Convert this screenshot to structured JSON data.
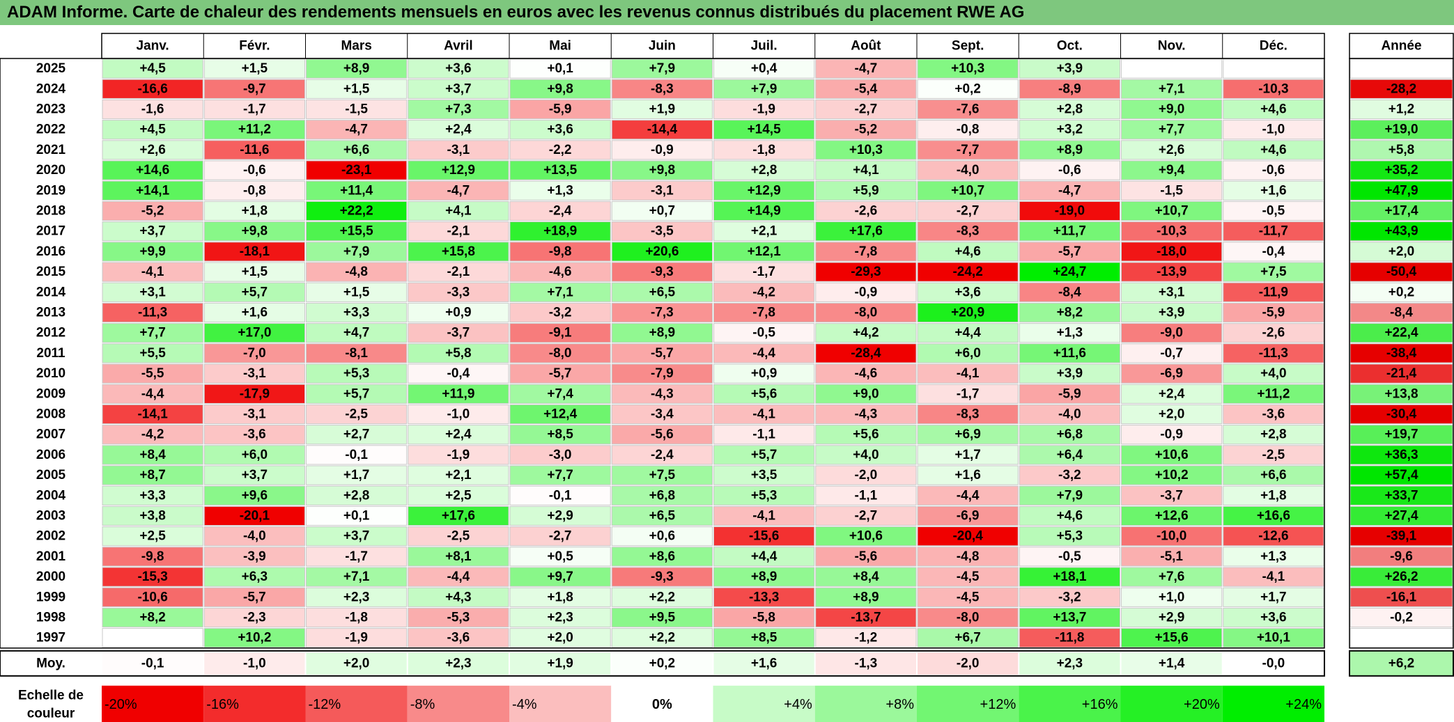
{
  "title": "ADAM Informe. Carte de chaleur des rendements mensuels en euros avec les revenus connus distribués du placement RWE AG",
  "chart_data": {
    "type": "heatmap",
    "months": [
      "Janv.",
      "Févr.",
      "Mars",
      "Avril",
      "Mai",
      "Juin",
      "Juil.",
      "Août",
      "Sept.",
      "Oct.",
      "Nov.",
      "Déc."
    ],
    "year_header": "Année",
    "rows": [
      {
        "year": "2025",
        "values": [
          4.5,
          1.5,
          8.9,
          3.6,
          0.1,
          7.9,
          0.4,
          -4.7,
          10.3,
          3.9,
          null,
          null
        ],
        "annual": null
      },
      {
        "year": "2024",
        "values": [
          -16.6,
          -9.7,
          1.5,
          3.7,
          9.8,
          -8.3,
          7.9,
          -5.4,
          0.2,
          -8.9,
          7.1,
          -10.3
        ],
        "annual": -28.2
      },
      {
        "year": "2023",
        "values": [
          -1.6,
          -1.7,
          -1.5,
          7.3,
          -5.9,
          1.9,
          -1.9,
          -2.7,
          -7.6,
          2.8,
          9.0,
          4.6
        ],
        "annual": 1.2
      },
      {
        "year": "2022",
        "values": [
          4.5,
          11.2,
          -4.7,
          2.4,
          3.6,
          -14.4,
          14.5,
          -5.2,
          -0.8,
          3.2,
          7.7,
          -1.0
        ],
        "annual": 19.0
      },
      {
        "year": "2021",
        "values": [
          2.6,
          -11.6,
          6.6,
          -3.1,
          -2.2,
          -0.9,
          -1.8,
          10.3,
          -7.7,
          8.9,
          2.6,
          4.6
        ],
        "annual": 5.8
      },
      {
        "year": "2020",
        "values": [
          14.6,
          -0.6,
          -23.1,
          12.9,
          13.5,
          9.8,
          2.8,
          4.1,
          -4.0,
          -0.6,
          9.4,
          -0.6
        ],
        "annual": 35.2
      },
      {
        "year": "2019",
        "values": [
          14.1,
          -0.8,
          11.4,
          -4.7,
          1.3,
          -3.1,
          12.9,
          5.9,
          10.7,
          -4.7,
          -1.5,
          1.6
        ],
        "annual": 47.9
      },
      {
        "year": "2018",
        "values": [
          -5.2,
          1.8,
          22.2,
          4.1,
          -2.4,
          0.7,
          14.9,
          -2.6,
          -2.7,
          -19.0,
          10.7,
          -0.5
        ],
        "annual": 17.4
      },
      {
        "year": "2017",
        "values": [
          3.7,
          9.8,
          15.5,
          -2.1,
          18.9,
          -3.5,
          2.1,
          17.6,
          -8.3,
          11.7,
          -10.3,
          -11.7
        ],
        "annual": 43.9
      },
      {
        "year": "2016",
        "values": [
          9.9,
          -18.1,
          7.9,
          15.8,
          -9.8,
          20.6,
          12.1,
          -7.8,
          4.6,
          -5.7,
          -18.0,
          -0.4
        ],
        "annual": 2.0
      },
      {
        "year": "2015",
        "values": [
          -4.1,
          1.5,
          -4.8,
          -2.1,
          -4.6,
          -9.3,
          -1.7,
          -29.3,
          -24.2,
          24.7,
          -13.9,
          7.5
        ],
        "annual": -50.4
      },
      {
        "year": "2014",
        "values": [
          3.1,
          5.7,
          1.5,
          -3.3,
          7.1,
          6.5,
          -4.2,
          -0.9,
          3.6,
          -8.4,
          3.1,
          -11.9
        ],
        "annual": 0.2
      },
      {
        "year": "2013",
        "values": [
          -11.3,
          1.6,
          3.3,
          0.9,
          -3.2,
          -7.3,
          -7.8,
          -8.0,
          20.9,
          8.2,
          3.9,
          -5.9
        ],
        "annual": -8.4
      },
      {
        "year": "2012",
        "values": [
          7.7,
          17.0,
          4.7,
          -3.7,
          -9.1,
          8.9,
          -0.5,
          4.2,
          4.4,
          1.3,
          -9.0,
          -2.6
        ],
        "annual": 22.4
      },
      {
        "year": "2011",
        "values": [
          5.5,
          -7.0,
          -8.1,
          5.8,
          -8.0,
          -5.7,
          -4.4,
          -28.4,
          6.0,
          11.6,
          -0.7,
          -11.3
        ],
        "annual": -38.4
      },
      {
        "year": "2010",
        "values": [
          -5.5,
          -3.1,
          5.3,
          -0.4,
          -5.7,
          -7.9,
          0.9,
          -4.6,
          -4.1,
          3.9,
          -6.9,
          4.0
        ],
        "annual": -21.4
      },
      {
        "year": "2009",
        "values": [
          -4.4,
          -17.9,
          5.7,
          11.9,
          7.4,
          -4.3,
          5.6,
          9.0,
          -1.7,
          -5.9,
          2.4,
          11.2
        ],
        "annual": 13.8
      },
      {
        "year": "2008",
        "values": [
          -14.1,
          -3.1,
          -2.5,
          -1.0,
          12.4,
          -3.4,
          -4.1,
          -4.3,
          -8.3,
          -4.0,
          2.0,
          -3.6
        ],
        "annual": -30.4
      },
      {
        "year": "2007",
        "values": [
          -4.2,
          -3.6,
          2.7,
          2.4,
          8.5,
          -5.6,
          -1.1,
          5.6,
          6.9,
          6.8,
          -0.9,
          2.8
        ],
        "annual": 19.7
      },
      {
        "year": "2006",
        "values": [
          8.4,
          6.0,
          -0.1,
          -1.9,
          -3.0,
          -2.4,
          5.7,
          4.0,
          1.7,
          6.4,
          10.6,
          -2.5
        ],
        "annual": 36.3
      },
      {
        "year": "2005",
        "values": [
          8.7,
          3.7,
          1.7,
          2.1,
          7.7,
          7.5,
          3.5,
          -2.0,
          1.6,
          -3.2,
          10.2,
          6.6
        ],
        "annual": 57.4
      },
      {
        "year": "2004",
        "values": [
          3.3,
          9.6,
          2.8,
          2.5,
          -0.1,
          6.8,
          5.3,
          -1.1,
          -4.4,
          7.9,
          -3.7,
          1.8
        ],
        "annual": 33.7
      },
      {
        "year": "2003",
        "values": [
          3.8,
          -20.1,
          0.1,
          17.6,
          2.9,
          6.5,
          -4.1,
          -2.7,
          -6.9,
          4.6,
          12.6,
          16.6
        ],
        "annual": 27.4
      },
      {
        "year": "2002",
        "values": [
          2.5,
          -4.0,
          3.7,
          -2.5,
          -2.7,
          0.6,
          -15.6,
          10.6,
          -20.4,
          5.3,
          -10.0,
          -12.6
        ],
        "annual": -39.1
      },
      {
        "year": "2001",
        "values": [
          -9.8,
          -3.9,
          -1.7,
          8.1,
          0.5,
          8.6,
          4.4,
          -5.6,
          -4.8,
          -0.5,
          -5.1,
          1.3
        ],
        "annual": -9.6
      },
      {
        "year": "2000",
        "values": [
          -15.3,
          6.3,
          7.1,
          -4.4,
          9.7,
          -9.3,
          8.9,
          8.4,
          -4.5,
          18.1,
          7.6,
          -4.1
        ],
        "annual": 26.2
      },
      {
        "year": "1999",
        "values": [
          -10.6,
          -5.7,
          2.3,
          4.3,
          1.8,
          2.2,
          -13.3,
          8.9,
          -4.5,
          -3.2,
          1.0,
          1.7
        ],
        "annual": -16.1
      },
      {
        "year": "1998",
        "values": [
          8.2,
          -2.3,
          -1.8,
          -5.3,
          2.3,
          9.5,
          -5.8,
          -13.7,
          -8.0,
          13.7,
          2.9,
          3.6
        ],
        "annual": -0.2
      },
      {
        "year": "1997",
        "values": [
          null,
          10.2,
          -1.9,
          -3.6,
          2.0,
          2.2,
          8.5,
          -1.2,
          6.7,
          -11.8,
          15.6,
          10.1
        ],
        "annual": null
      }
    ],
    "average": {
      "label": "Moy.",
      "values": [
        -0.1,
        -1.0,
        2.0,
        2.3,
        1.9,
        0.2,
        1.6,
        -1.3,
        -2.0,
        2.3,
        1.4,
        -0.0
      ],
      "annual": 6.2
    },
    "scale": {
      "label": [
        "Echelle de",
        "couleur"
      ],
      "steps": [
        -20,
        -16,
        -12,
        -8,
        -4,
        0,
        4,
        8,
        12,
        16,
        20,
        24
      ],
      "texts": [
        "-20%",
        "-16%",
        "-12%",
        "-8%",
        "-4%",
        "0%",
        "+4%",
        "+8%",
        "+12%",
        "+16%",
        "+20%",
        "+24%"
      ]
    }
  }
}
